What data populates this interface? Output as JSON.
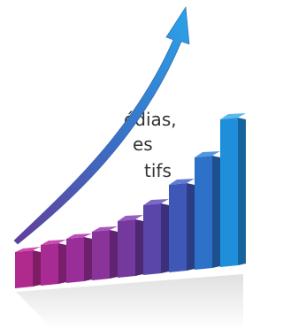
{
  "text_lines": [
    "édias,",
    "es",
    "tifs"
  ]
}
